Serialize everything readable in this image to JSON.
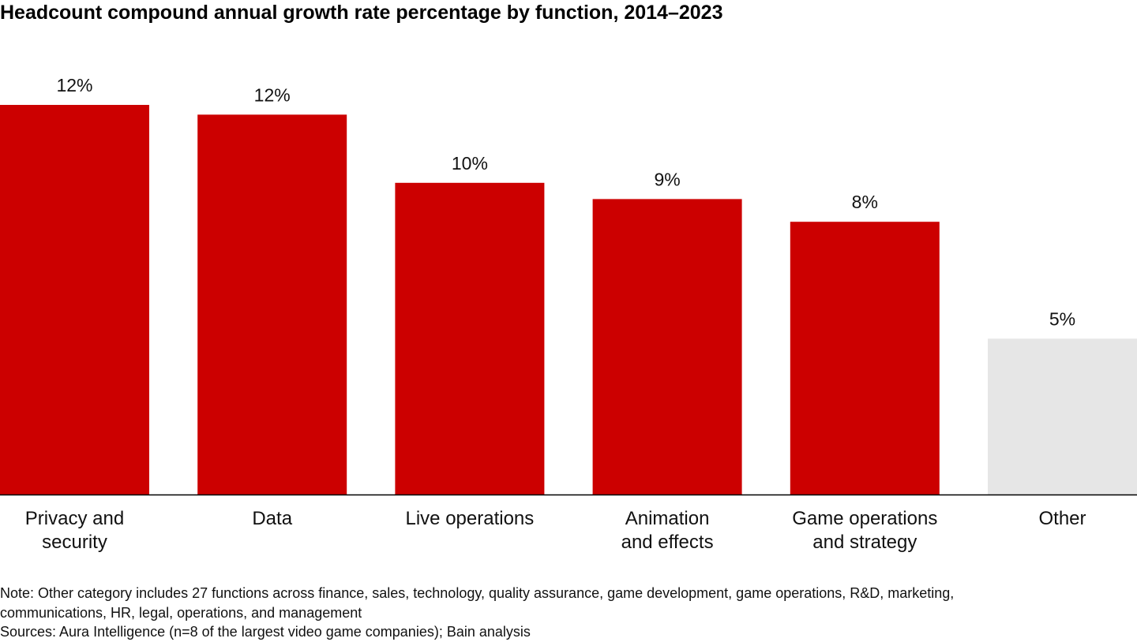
{
  "chart_data": {
    "type": "bar",
    "title": "Headcount compound annual growth rate percentage by function, 2014–2023",
    "xlabel": "",
    "ylabel": "",
    "categories": [
      [
        "Privacy and",
        "security"
      ],
      [
        "Data"
      ],
      [
        "Live operations"
      ],
      [
        "Animation",
        "and effects"
      ],
      [
        "Game operations",
        "and strategy"
      ],
      [
        "Other"
      ]
    ],
    "values": [
      12.0,
      11.7,
      9.6,
      9.1,
      8.4,
      4.8
    ],
    "data_labels": [
      "12%",
      "12%",
      "10%",
      "9%",
      "8%",
      "5%"
    ],
    "ylim": [
      0,
      12
    ],
    "grid": false,
    "legend": "none",
    "colors": [
      "#CC0000",
      "#CC0000",
      "#CC0000",
      "#CC0000",
      "#CC0000",
      "#E6E6E6"
    ],
    "baseline_color": "#000000"
  },
  "notes": {
    "note": "Note: Other category includes 27 functions across finance, sales, technology, quality assurance, game development, game operations, R&D, marketing,",
    "note_cont": "communications, HR, legal, operations, and management",
    "sources": "Sources: Aura Intelligence (n=8 of the largest video game companies); Bain analysis"
  }
}
